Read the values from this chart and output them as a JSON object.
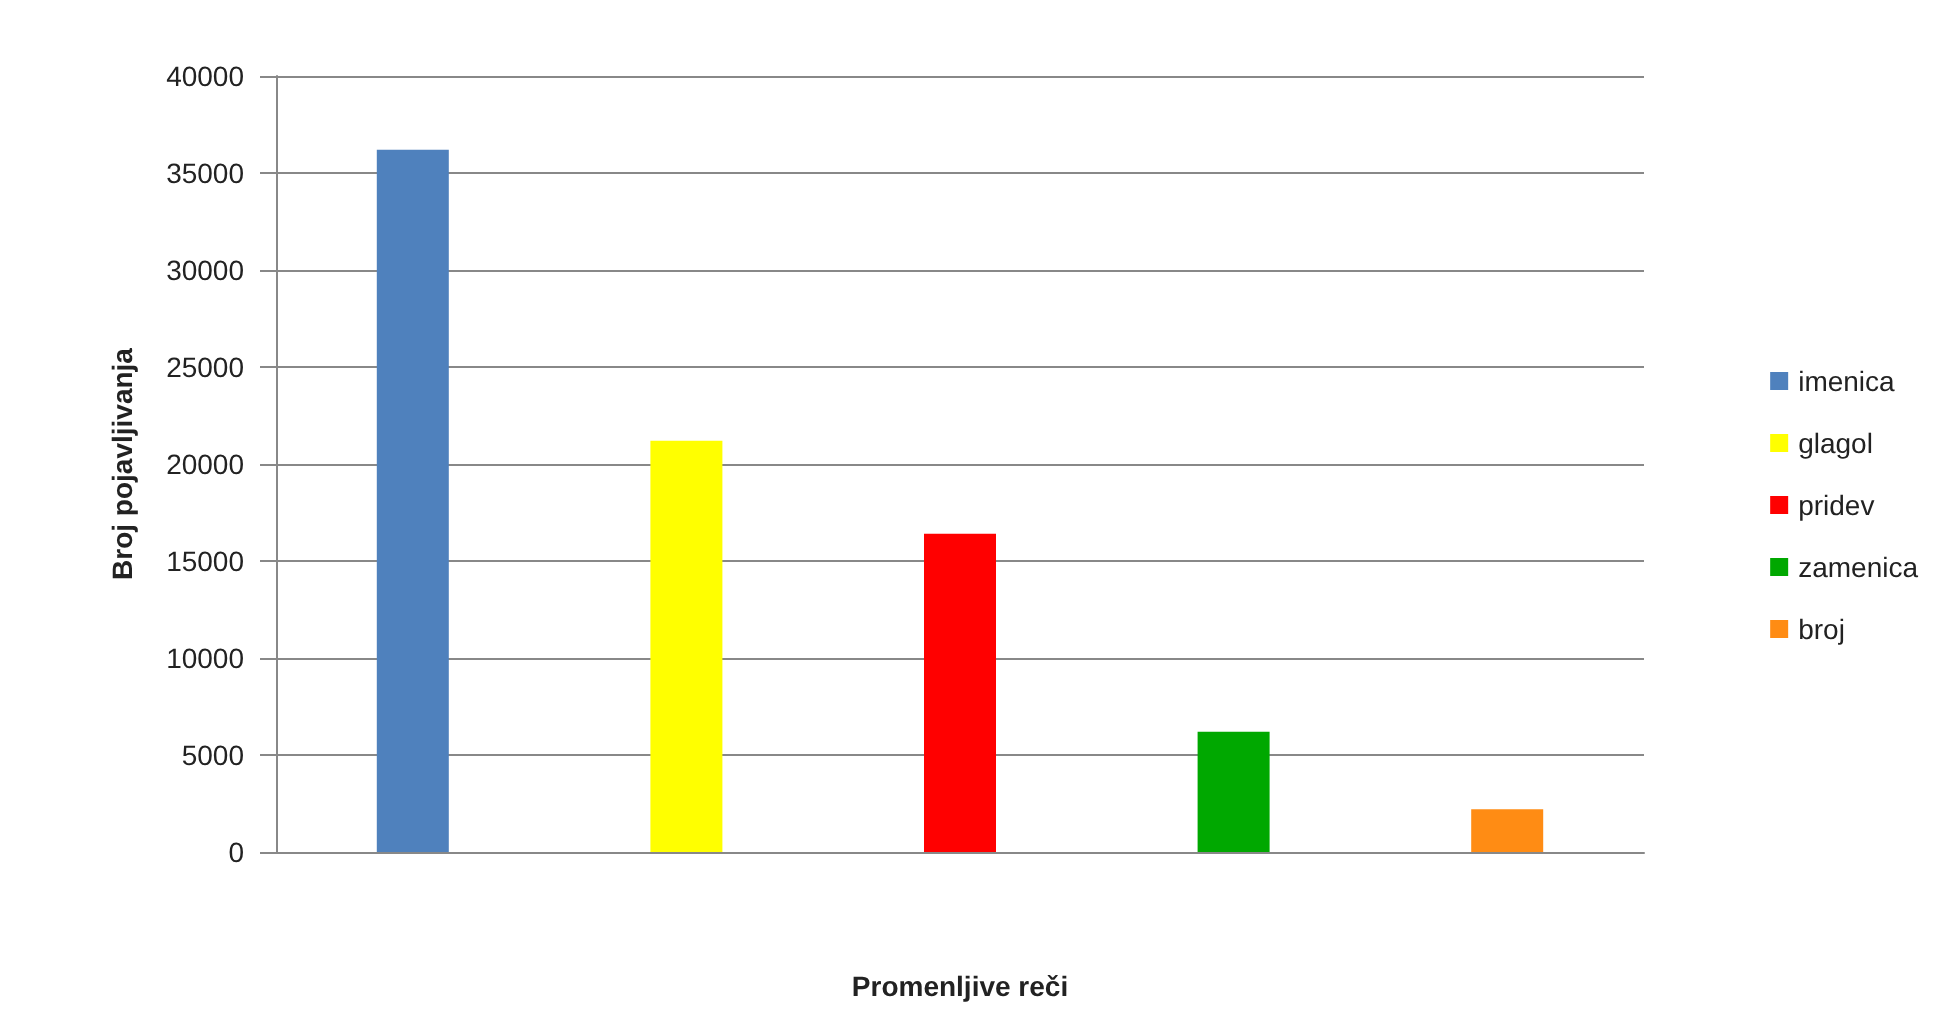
{
  "chart_data": {
    "type": "bar",
    "xlabel": "Promenljive reči",
    "ylabel": "Broj pojavljivanja",
    "categories": [
      null,
      null,
      null,
      null,
      null
    ],
    "series": [
      {
        "name": "imenica",
        "color": "#4f81bd",
        "values": [
          36200,
          null,
          null,
          null,
          null
        ]
      },
      {
        "name": "glagol",
        "color": "#ffff00",
        "values": [
          null,
          21200,
          null,
          null,
          null
        ]
      },
      {
        "name": "pridev",
        "color": "#ff0000",
        "values": [
          null,
          null,
          16400,
          null,
          null
        ]
      },
      {
        "name": "zamenica",
        "color": "#00a800",
        "values": [
          null,
          null,
          null,
          6200,
          null
        ]
      },
      {
        "name": "broj",
        "color": "#ff8c14",
        "values": [
          null,
          null,
          null,
          null,
          2200
        ]
      }
    ],
    "ylim": [
      0,
      40000
    ],
    "yticks": [
      0,
      5000,
      10000,
      15000,
      20000,
      25000,
      30000,
      35000,
      40000
    ],
    "grid": "y",
    "legend": "right",
    "tick_labels": "y"
  }
}
